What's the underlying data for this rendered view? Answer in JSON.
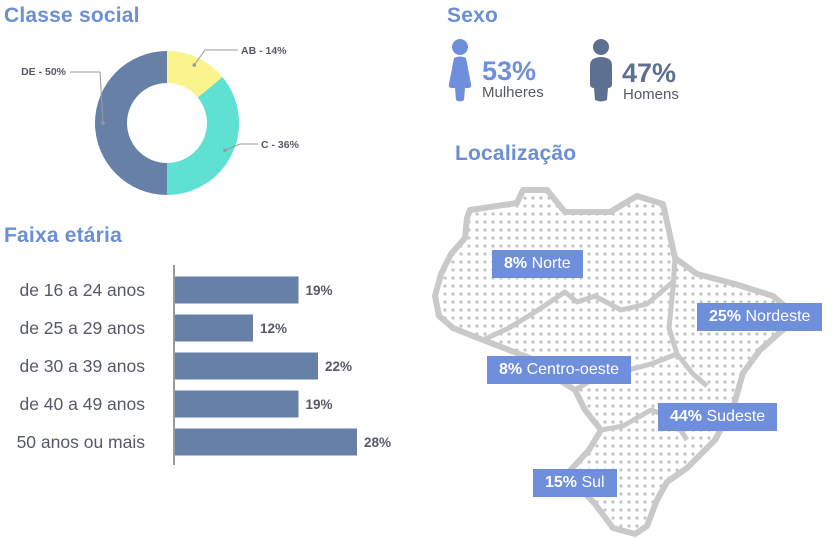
{
  "social": {
    "title": "Classe social",
    "chart_data": {
      "type": "pie",
      "categories": [
        "AB",
        "C",
        "DE"
      ],
      "values": [
        14,
        36,
        50
      ],
      "labels": [
        "AB - 14%",
        "C - 36%",
        "DE - 50%"
      ],
      "colors": [
        "#fbf38c",
        "#5ee0d3",
        "#6680a8"
      ]
    }
  },
  "age": {
    "title": "Faixa etária",
    "chart_data": {
      "type": "bar",
      "categories": [
        "de 16 a 24 anos",
        "de 25 a 29 anos",
        "de 30 a 39 anos",
        "de 40 a 49 anos",
        "50 anos ou mais"
      ],
      "values": [
        19,
        12,
        22,
        19,
        28
      ],
      "value_labels": [
        "19%",
        "12%",
        "22%",
        "19%",
        "28%"
      ],
      "color": "#6680a8"
    }
  },
  "sex": {
    "title": "Sexo",
    "women": {
      "pct": "53%",
      "label": "Mulheres",
      "color": "#6f8fdc",
      "icon": "woman-icon"
    },
    "men": {
      "pct": "47%",
      "label": "Homens",
      "color": "#5e7090",
      "icon": "man-icon"
    }
  },
  "location": {
    "title": "Localização",
    "regions": {
      "norte": {
        "pct": "8%",
        "name": "Norte"
      },
      "nordeste": {
        "pct": "25%",
        "name": "Nordeste"
      },
      "centro_oeste": {
        "pct": "8%",
        "name": "Centro-oeste"
      },
      "sudeste": {
        "pct": "44%",
        "name": "Sudeste"
      },
      "sul": {
        "pct": "15%",
        "name": "Sul"
      }
    },
    "accent": "#6f8fdc"
  }
}
